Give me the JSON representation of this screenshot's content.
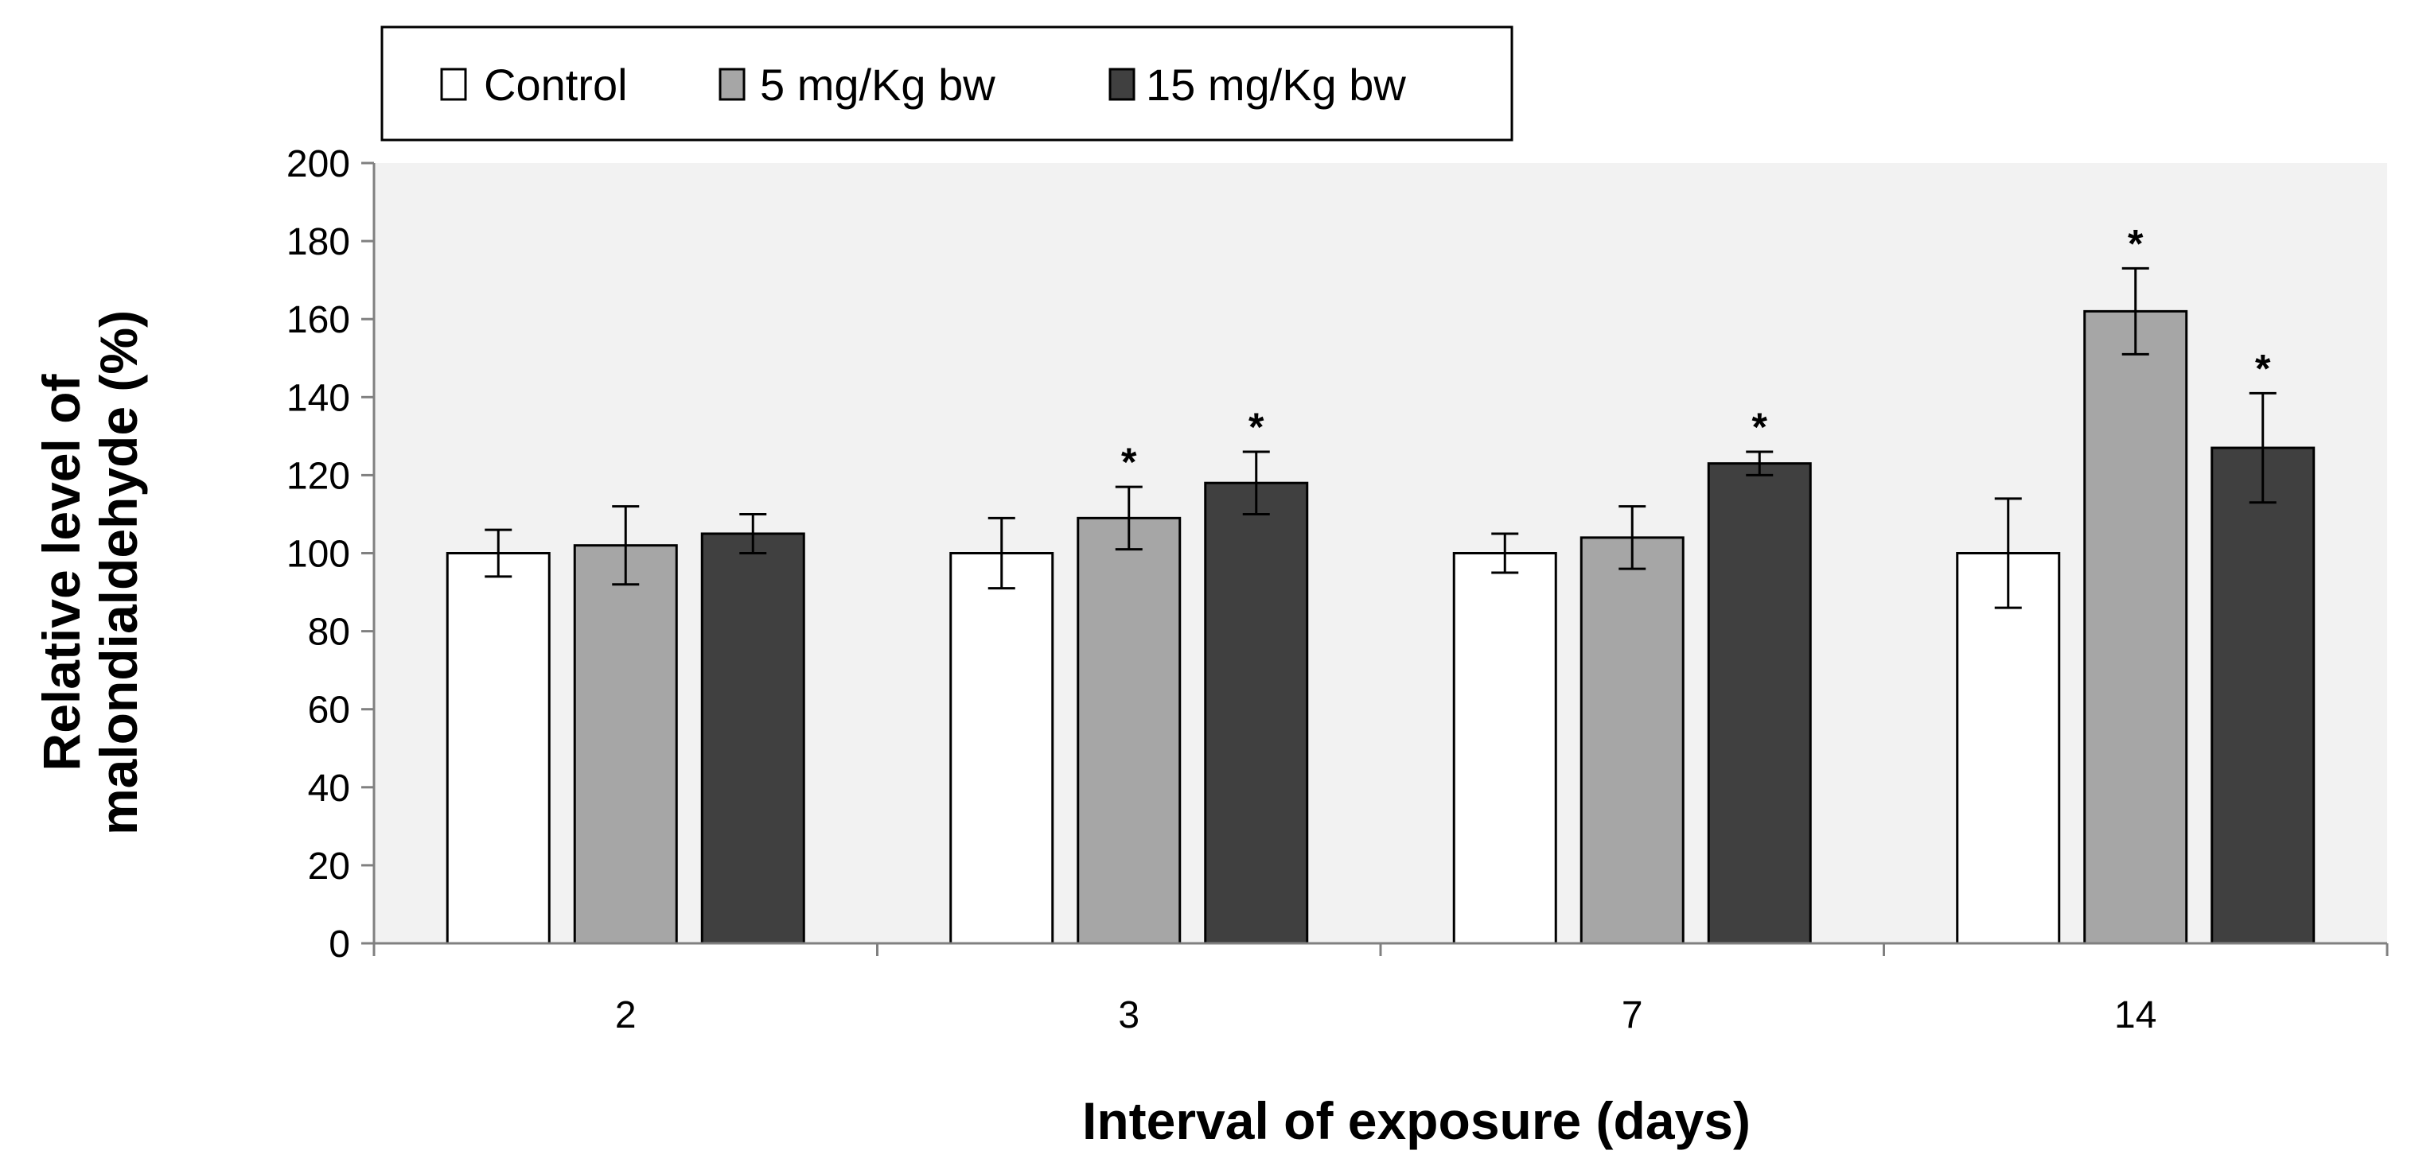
{
  "chart_data": {
    "type": "bar",
    "title": "",
    "xlabel": "Interval of exposure (days)",
    "ylabel_lines": [
      "Relative level of",
      "malondialdehyde (%)"
    ],
    "categories": [
      "2",
      "3",
      "7",
      "14"
    ],
    "ylim": [
      0,
      200
    ],
    "yticks": [
      "0",
      "20",
      "40",
      "60",
      "80",
      "100",
      "120",
      "140",
      "160",
      "180",
      "200"
    ],
    "legend_position": "top",
    "significance_marker": "*",
    "series": [
      {
        "name": "Control",
        "color": "#ffffff",
        "values": [
          100,
          100,
          100,
          100
        ],
        "errors": [
          6,
          9,
          5,
          14
        ],
        "significant": [
          false,
          false,
          false,
          false
        ]
      },
      {
        "name": "5 mg/Kg bw",
        "color": "#a6a6a6",
        "values": [
          102,
          109,
          104,
          162
        ],
        "errors": [
          10,
          8,
          8,
          11
        ],
        "significant": [
          false,
          true,
          false,
          true
        ]
      },
      {
        "name": "15 mg/Kg bw",
        "color": "#404040",
        "values": [
          105,
          118,
          123,
          127
        ],
        "errors": [
          5,
          8,
          3,
          14
        ],
        "significant": [
          false,
          true,
          true,
          true
        ]
      }
    ],
    "plot_background": "#f2f2f2"
  }
}
